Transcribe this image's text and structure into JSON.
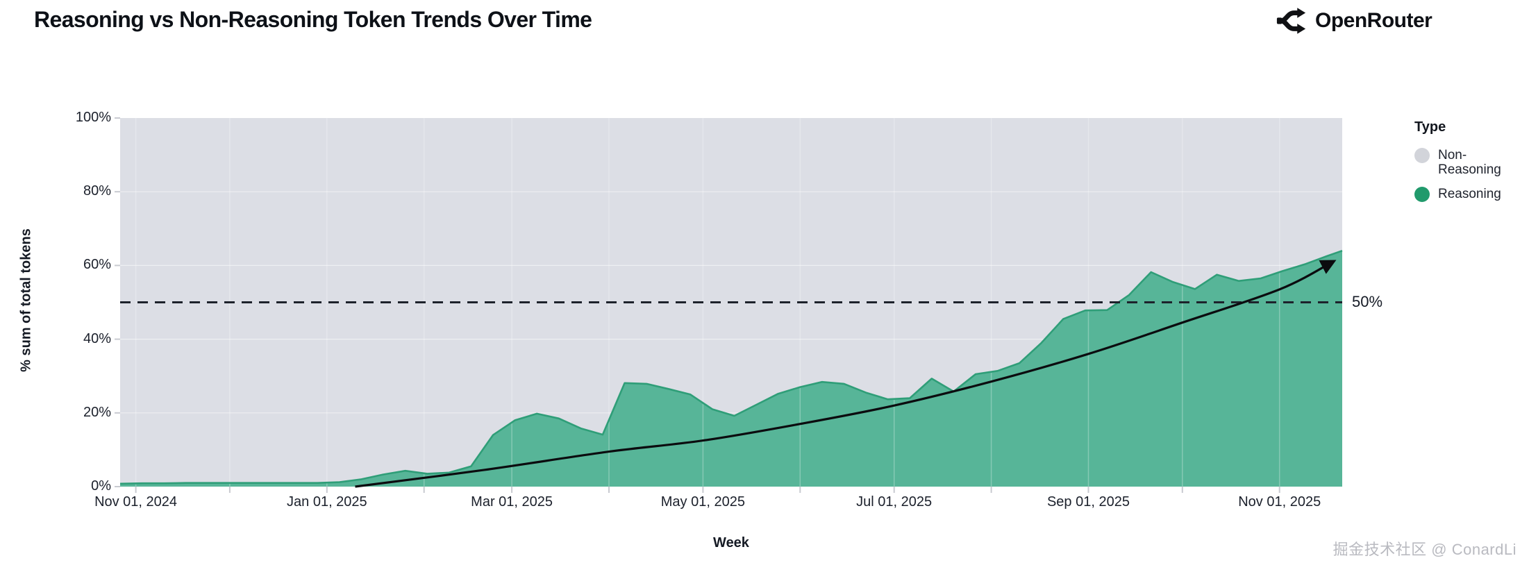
{
  "header": {
    "title": "Reasoning vs Non-Reasoning Token Trends Over Time",
    "brand": "OpenRouter"
  },
  "watermark": "掘金技术社区 @ ConardLi",
  "chart_data": {
    "type": "area",
    "title": "Reasoning vs Non-Reasoning Token Trends Over Time",
    "xlabel": "Week",
    "ylabel": "% sum of total tokens",
    "ylim": [
      0,
      100
    ],
    "x_domain": [
      "2024-10-27",
      "2025-11-21"
    ],
    "grid": true,
    "legend_position": "right",
    "legend": {
      "title": "Type",
      "items": [
        {
          "label": "Non-Reasoning",
          "color": "#d2d4da"
        },
        {
          "label": "Reasoning",
          "color": "#219a6c"
        }
      ]
    },
    "y_ticks": [
      {
        "value": 0,
        "label": "0%"
      },
      {
        "value": 20,
        "label": "20%"
      },
      {
        "value": 40,
        "label": "40%"
      },
      {
        "value": 60,
        "label": "60%"
      },
      {
        "value": 80,
        "label": "80%"
      },
      {
        "value": 100,
        "label": "100%"
      }
    ],
    "x_ticks": [
      {
        "date": "2024-11-01",
        "label": "Nov 01, 2024"
      },
      {
        "date": "2024-12-01",
        "label": ""
      },
      {
        "date": "2025-01-01",
        "label": "Jan 01, 2025"
      },
      {
        "date": "2025-02-01",
        "label": ""
      },
      {
        "date": "2025-03-01",
        "label": "Mar 01, 2025"
      },
      {
        "date": "2025-04-01",
        "label": ""
      },
      {
        "date": "2025-05-01",
        "label": "May 01, 2025"
      },
      {
        "date": "2025-06-01",
        "label": ""
      },
      {
        "date": "2025-07-01",
        "label": "Jul 01, 2025"
      },
      {
        "date": "2025-08-01",
        "label": ""
      },
      {
        "date": "2025-09-01",
        "label": "Sep 01, 2025"
      },
      {
        "date": "2025-10-01",
        "label": ""
      },
      {
        "date": "2025-11-01",
        "label": "Nov 01, 2025"
      }
    ],
    "reference_line": {
      "value": 50,
      "label": "50%"
    },
    "series": [
      {
        "name": "Reasoning",
        "unit": "% of total tokens (weekly)",
        "points": [
          [
            "2024-10-27",
            0.8
          ],
          [
            "2024-11-03",
            0.9
          ],
          [
            "2024-11-10",
            0.9
          ],
          [
            "2024-11-17",
            1.0
          ],
          [
            "2024-11-24",
            1.0
          ],
          [
            "2024-12-01",
            1.0
          ],
          [
            "2024-12-08",
            1.0
          ],
          [
            "2024-12-15",
            1.0
          ],
          [
            "2024-12-22",
            1.0
          ],
          [
            "2024-12-29",
            1.0
          ],
          [
            "2025-01-05",
            1.2
          ],
          [
            "2025-01-12",
            2.0
          ],
          [
            "2025-01-19",
            3.3
          ],
          [
            "2025-01-26",
            4.3
          ],
          [
            "2025-02-02",
            3.5
          ],
          [
            "2025-02-09",
            3.8
          ],
          [
            "2025-02-16",
            5.5
          ],
          [
            "2025-02-23",
            14.0
          ],
          [
            "2025-03-02",
            18.0
          ],
          [
            "2025-03-09",
            19.8
          ],
          [
            "2025-03-16",
            18.5
          ],
          [
            "2025-03-23",
            15.8
          ],
          [
            "2025-03-30",
            14.1
          ],
          [
            "2025-04-06",
            28.1
          ],
          [
            "2025-04-13",
            27.9
          ],
          [
            "2025-04-20",
            26.5
          ],
          [
            "2025-04-27",
            25.0
          ],
          [
            "2025-05-04",
            21.0
          ],
          [
            "2025-05-11",
            19.2
          ],
          [
            "2025-05-18",
            22.2
          ],
          [
            "2025-05-25",
            25.2
          ],
          [
            "2025-06-01",
            27.0
          ],
          [
            "2025-06-08",
            28.4
          ],
          [
            "2025-06-15",
            27.9
          ],
          [
            "2025-06-22",
            25.5
          ],
          [
            "2025-06-29",
            23.7
          ],
          [
            "2025-07-06",
            24.0
          ],
          [
            "2025-07-13",
            29.3
          ],
          [
            "2025-07-20",
            25.8
          ],
          [
            "2025-07-27",
            30.5
          ],
          [
            "2025-08-03",
            31.4
          ],
          [
            "2025-08-10",
            33.5
          ],
          [
            "2025-08-17",
            39.0
          ],
          [
            "2025-08-24",
            45.5
          ],
          [
            "2025-08-31",
            47.8
          ],
          [
            "2025-09-07",
            47.9
          ],
          [
            "2025-09-14",
            52.0
          ],
          [
            "2025-09-21",
            58.2
          ],
          [
            "2025-09-28",
            55.5
          ],
          [
            "2025-10-05",
            53.6
          ],
          [
            "2025-10-12",
            57.5
          ],
          [
            "2025-10-19",
            55.8
          ],
          [
            "2025-10-26",
            56.5
          ],
          [
            "2025-11-02",
            58.5
          ],
          [
            "2025-11-09",
            60.3
          ],
          [
            "2025-11-16",
            62.5
          ],
          [
            "2025-11-21",
            64.0
          ]
        ]
      }
    ],
    "trend_arrow": {
      "description": "black curved arrow from 0% in Jan 2025 to ~61% in Nov 2025",
      "points": [
        [
          "2025-01-10",
          0
        ],
        [
          "2025-02-20",
          4.5
        ],
        [
          "2025-04-01",
          9.5
        ],
        [
          "2025-05-01",
          12.5
        ],
        [
          "2025-06-01",
          17.0
        ],
        [
          "2025-07-01",
          22.0
        ],
        [
          "2025-08-01",
          28.5
        ],
        [
          "2025-09-01",
          36.0
        ],
        [
          "2025-10-01",
          44.5
        ],
        [
          "2025-11-01",
          53.5
        ],
        [
          "2025-11-18",
          61.0
        ]
      ]
    },
    "colors": {
      "plot_background": "#dcdee5",
      "area_fill": "#57b598",
      "area_stroke": "#2f9e78",
      "reference_dash": "#1d222b",
      "trend_line": "#0b0c0f",
      "tick_mark": "#c8cad0",
      "text": "#161b26"
    }
  }
}
